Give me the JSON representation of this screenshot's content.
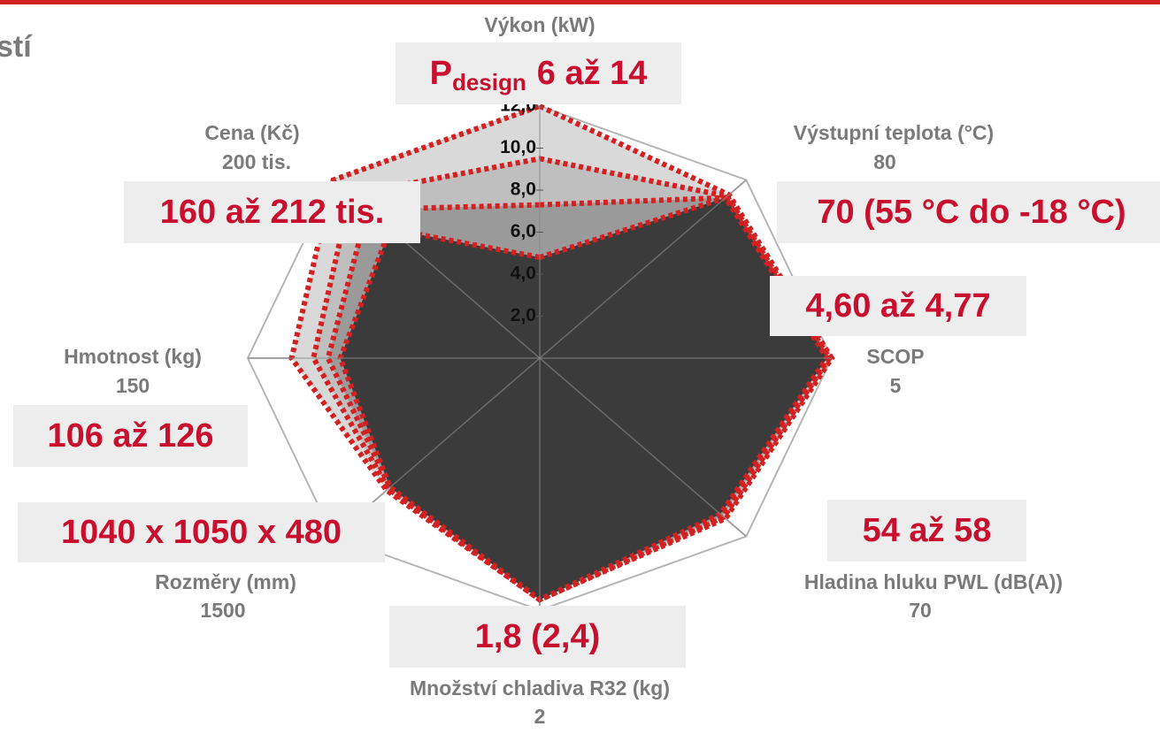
{
  "chart_data": {
    "type": "radar",
    "title": "stí",
    "axes": [
      {
        "label": "Výkon (kW)"
      },
      {
        "label": "Výstupní teplota (°C)",
        "max": 80
      },
      {
        "label": "SCOP",
        "max": 5
      },
      {
        "label": "Hladina hluku PWL (dB(A))",
        "max": 70
      },
      {
        "label": "Množství chladiva R32 (kg)",
        "max": 2
      },
      {
        "label": "Rozměry (mm)",
        "max": 1500
      },
      {
        "label": "Hmotnost (kg)",
        "max": 150
      },
      {
        "label": "Cena (Kč)",
        "max": "200 tis."
      }
    ],
    "ylim": [
      0,
      12
    ],
    "yticks": [
      {
        "value": 2,
        "label": "2,0"
      },
      {
        "value": 4,
        "label": "4,0"
      },
      {
        "value": 6,
        "label": "6,0"
      },
      {
        "value": 8,
        "label": "8,0"
      },
      {
        "value": 10,
        "label": "10,0"
      },
      {
        "value": 12,
        "label": "12,0"
      }
    ],
    "series": [
      {
        "color": "#d9d9d9",
        "values": [
          12,
          11,
          12,
          10.8,
          11.5,
          8.9,
          10.2,
          12
        ]
      },
      {
        "color": "#bfbfbf",
        "values": [
          9.5,
          10.9,
          11.9,
          10.7,
          11.5,
          8.8,
          9.3,
          11
        ]
      },
      {
        "color": "#9a9a9a",
        "values": [
          7.3,
          10.8,
          11.8,
          10.6,
          11.5,
          8.7,
          8.7,
          10
        ]
      },
      {
        "color": "#3b3b3b",
        "values": [
          4.8,
          10.8,
          11.8,
          10.5,
          11.5,
          8.7,
          8.2,
          8.7
        ]
      }
    ],
    "outline_color": "#d42020",
    "annotations": [
      {
        "prefix": "P",
        "subscript": "design",
        "text": "6 až 14"
      },
      {
        "text": "160 až 212 tis."
      },
      {
        "text": "70 (55 °C do -18 °C)"
      },
      {
        "text": "4,60 až 4,77"
      },
      {
        "text": "106 až 126"
      },
      {
        "text": "1040 x 1050 x 480"
      },
      {
        "text": "54 až 58"
      },
      {
        "text": "1,8 (2,4)"
      }
    ]
  }
}
